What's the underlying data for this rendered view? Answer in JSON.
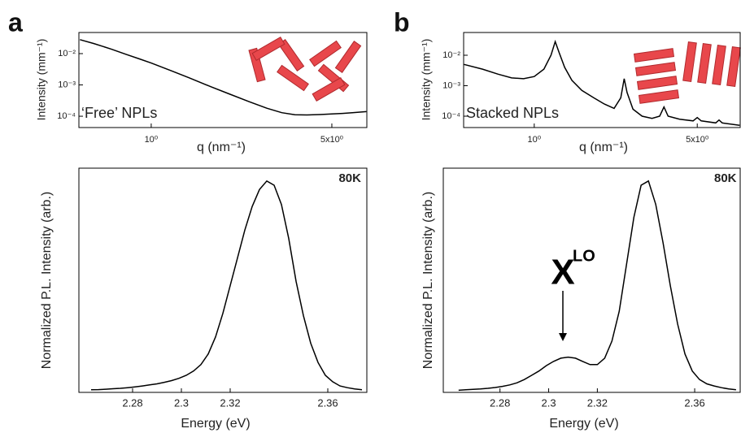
{
  "chart_data": [
    {
      "type": "line",
      "panel_label": "a",
      "annotation": "‘Free’ NPLs",
      "x_label": "q (nm⁻¹)",
      "y_label": "Intensity (mm⁻¹)",
      "xscale": "log",
      "yscale": "log",
      "xlim": [
        0.525,
        6.83
      ],
      "ylim": [
        4.35e-05,
        0.0473
      ],
      "xticks": [
        {
          "value": 1,
          "label": "10⁰"
        },
        {
          "value": 5,
          "label": "5x10⁰"
        }
      ],
      "yticks": [
        {
          "value": 0.01,
          "label": "10⁻²"
        },
        {
          "value": 0.001,
          "label": "10⁻³"
        },
        {
          "value": 0.0001,
          "label": "10⁻⁴"
        }
      ],
      "color": "#000000",
      "x": [
        0.53,
        0.6,
        0.7,
        0.8,
        0.9,
        1.0,
        1.2,
        1.4,
        1.7,
        2.0,
        2.4,
        2.8,
        3.2,
        3.6,
        4.0,
        4.5,
        5.0,
        5.5,
        6.0,
        6.8
      ],
      "values": [
        0.028,
        0.021,
        0.014,
        0.0095,
        0.0068,
        0.005,
        0.0028,
        0.0017,
        0.00088,
        0.00052,
        0.00029,
        0.00018,
        0.00013,
        0.000112,
        0.00011,
        0.000113,
        0.000118,
        0.000123,
        0.00013,
        0.00014
      ]
    },
    {
      "type": "line",
      "panel_label": "b",
      "annotation": "Stacked NPLs",
      "x_label": "q (nm⁻¹)",
      "y_label": "Intensity (mm⁻¹)",
      "xscale": "log",
      "yscale": "log",
      "xlim": [
        0.498,
        7.64
      ],
      "ylim": [
        4.24e-05,
        0.0558
      ],
      "xticks": [
        {
          "value": 1,
          "label": "10⁰"
        },
        {
          "value": 5,
          "label": "5x10⁰"
        }
      ],
      "yticks": [
        {
          "value": 0.01,
          "label": "10⁻²"
        },
        {
          "value": 0.001,
          "label": "10⁻³"
        },
        {
          "value": 0.0001,
          "label": "10⁻⁴"
        }
      ],
      "color": "#000000",
      "x": [
        0.5,
        0.6,
        0.7,
        0.8,
        0.9,
        1.0,
        1.1,
        1.18,
        1.23,
        1.28,
        1.35,
        1.45,
        1.6,
        1.8,
        2.0,
        2.2,
        2.35,
        2.43,
        2.5,
        2.65,
        2.9,
        3.2,
        3.45,
        3.6,
        3.75,
        4.2,
        4.8,
        5.0,
        5.2,
        6.0,
        6.2,
        6.4,
        7.6
      ],
      "values": [
        0.005,
        0.0035,
        0.0024,
        0.0018,
        0.0017,
        0.002,
        0.0035,
        0.01,
        0.028,
        0.012,
        0.004,
        0.0015,
        0.0007,
        0.0004,
        0.00025,
        0.00018,
        0.0004,
        0.0017,
        0.0006,
        0.00017,
        0.0001,
        8.5e-05,
        0.0001,
        0.0002,
        0.0001,
        8e-05,
        7e-05,
        9e-05,
        7e-05,
        6e-05,
        7.5e-05,
        6e-05,
        5e-05
      ]
    },
    {
      "type": "line",
      "temperature": "80K",
      "x_label": "Energy (eV)",
      "y_label": "Normalized P.L. Intensity (arb.)",
      "xlim": [
        2.258,
        2.376
      ],
      "ylim": [
        0,
        1.05
      ],
      "xticks": [
        2.28,
        2.3,
        2.32,
        2.36
      ],
      "color": "#000000",
      "x": [
        2.263,
        2.266,
        2.269,
        2.272,
        2.275,
        2.278,
        2.281,
        2.284,
        2.287,
        2.29,
        2.293,
        2.296,
        2.299,
        2.302,
        2.305,
        2.308,
        2.311,
        2.314,
        2.317,
        2.32,
        2.323,
        2.326,
        2.329,
        2.332,
        2.335,
        2.338,
        2.341,
        2.344,
        2.347,
        2.35,
        2.353,
        2.356,
        2.359,
        2.362,
        2.365,
        2.368,
        2.371,
        2.374
      ],
      "values": [
        0.012,
        0.013,
        0.015,
        0.017,
        0.019,
        0.022,
        0.026,
        0.03,
        0.035,
        0.04,
        0.047,
        0.055,
        0.066,
        0.08,
        0.1,
        0.13,
        0.18,
        0.26,
        0.37,
        0.5,
        0.63,
        0.76,
        0.87,
        0.95,
        0.99,
        0.97,
        0.88,
        0.72,
        0.52,
        0.36,
        0.23,
        0.14,
        0.08,
        0.05,
        0.03,
        0.022,
        0.016,
        0.012
      ]
    },
    {
      "type": "line",
      "temperature": "80K",
      "x_label": "Energy (eV)",
      "y_label": "Normalized P.L. Intensity (arb.)",
      "annotation": "X",
      "annotation_superscript": "LO",
      "xlim": [
        2.2567,
        2.3787
      ],
      "ylim": [
        0,
        1.05
      ],
      "xticks": [
        2.28,
        2.3,
        2.32,
        2.36
      ],
      "color": "#000000",
      "x": [
        2.263,
        2.266,
        2.269,
        2.272,
        2.275,
        2.278,
        2.281,
        2.284,
        2.287,
        2.29,
        2.293,
        2.296,
        2.299,
        2.302,
        2.305,
        2.308,
        2.311,
        2.314,
        2.317,
        2.32,
        2.323,
        2.326,
        2.329,
        2.332,
        2.335,
        2.338,
        2.341,
        2.344,
        2.347,
        2.35,
        2.353,
        2.356,
        2.359,
        2.362,
        2.365,
        2.368,
        2.371,
        2.374,
        2.377
      ],
      "values": [
        0.01,
        0.012,
        0.014,
        0.016,
        0.019,
        0.023,
        0.028,
        0.035,
        0.045,
        0.06,
        0.08,
        0.1,
        0.125,
        0.145,
        0.16,
        0.165,
        0.16,
        0.145,
        0.13,
        0.13,
        0.16,
        0.24,
        0.38,
        0.6,
        0.82,
        0.97,
        0.99,
        0.88,
        0.7,
        0.5,
        0.32,
        0.18,
        0.1,
        0.06,
        0.04,
        0.03,
        0.022,
        0.016,
        0.012
      ]
    }
  ]
}
